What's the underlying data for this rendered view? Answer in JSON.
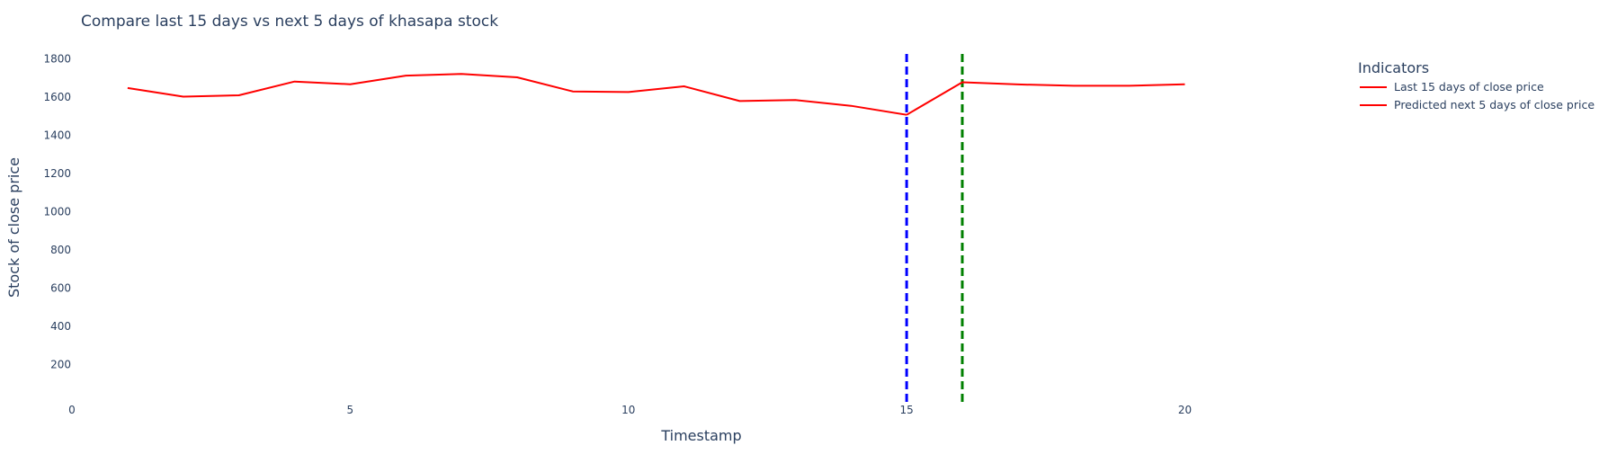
{
  "chart_data": {
    "type": "line",
    "title": "Compare last 15 days vs next 5 days of khasapa stock",
    "xlabel": "Timestamp",
    "ylabel": "Stock of close price",
    "xlim": [
      0,
      24
    ],
    "ylim": [
      0,
      1850
    ],
    "x_ticks": [
      0,
      5,
      10,
      15,
      20
    ],
    "y_ticks": [
      200,
      400,
      600,
      800,
      1000,
      1200,
      1400,
      1600,
      1800
    ],
    "grid": false,
    "legend": {
      "title": "Indicators",
      "placement": "top-right"
    },
    "series": [
      {
        "name": "Last 15 days of close price",
        "color": "#ff0000",
        "x": [
          1,
          2,
          3,
          4,
          5,
          6,
          7,
          8,
          9,
          10,
          11,
          12,
          13,
          14,
          15
        ],
        "y": [
          1648,
          1603,
          1610,
          1682,
          1668,
          1713,
          1722,
          1704,
          1630,
          1627,
          1657,
          1580,
          1585,
          1555,
          1508
        ]
      },
      {
        "name": "Predicted next 5 days of close price",
        "color": "#ff0000",
        "x": [
          16,
          17,
          18,
          19,
          20
        ],
        "y": [
          1678,
          1667,
          1660,
          1660,
          1668
        ]
      }
    ],
    "vlines": [
      {
        "x": 15,
        "color": "#0000ff",
        "style": "dashed"
      },
      {
        "x": 16,
        "color": "#008000",
        "style": "dashed"
      }
    ]
  }
}
